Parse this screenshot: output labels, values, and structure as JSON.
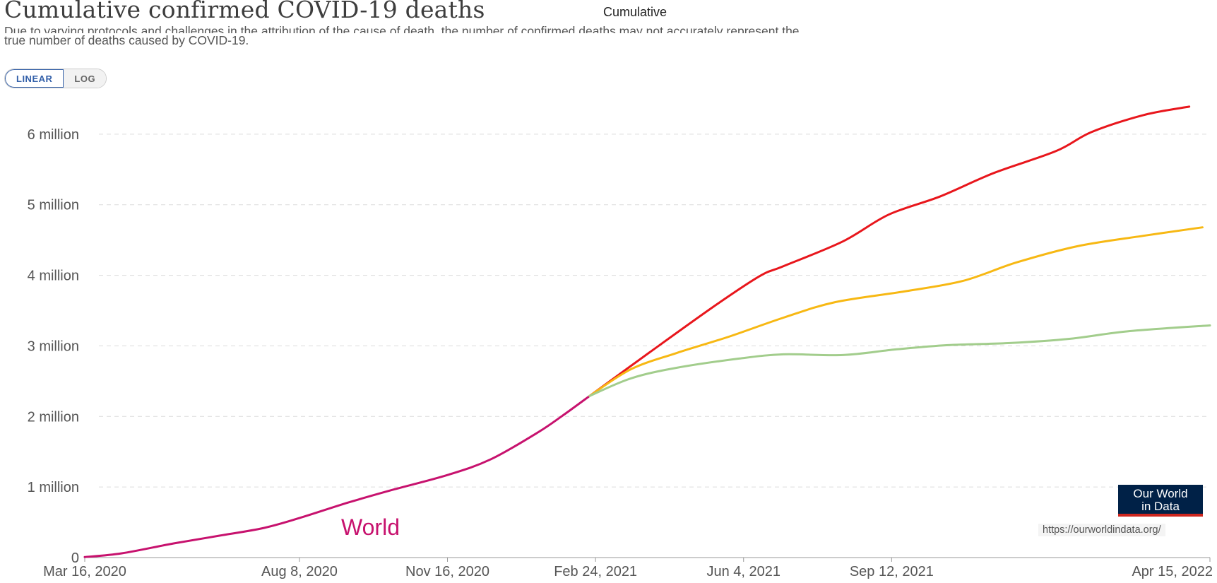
{
  "header": {
    "title": "Cumulative confirmed COVID-19 deaths",
    "tag": "Cumulative",
    "subtitle_line1": "Due to varying protocols and challenges in the attribution of the cause of death, the number of confirmed deaths may not accurately represent the",
    "subtitle_line2": "true number of deaths caused by COVID-19."
  },
  "controls": {
    "linear_label": "LINEAR",
    "log_label": "LOG",
    "active": "LINEAR"
  },
  "branding": {
    "logo_line1": "Our World",
    "logo_line2": "in Data",
    "url": "https://ourworldindata.org/"
  },
  "colors": {
    "world": "#c7126e",
    "red": "#e8161c",
    "yellow": "#f7b813",
    "green": "#a2cd8c",
    "grid": "#dcdcdc"
  },
  "chart_data": {
    "type": "line",
    "y_ticks": [
      {
        "v": 0,
        "label": "0"
      },
      {
        "v": 1000000,
        "label": "1 million"
      },
      {
        "v": 2000000,
        "label": "2 million"
      },
      {
        "v": 3000000,
        "label": "3 million"
      },
      {
        "v": 4000000,
        "label": "4 million"
      },
      {
        "v": 5000000,
        "label": "5 million"
      },
      {
        "v": 6000000,
        "label": "6 million"
      }
    ],
    "x_ticks": [
      {
        "d": "2020-03-16",
        "label": "Mar 16, 2020"
      },
      {
        "d": "2020-08-08",
        "label": "Aug 8, 2020"
      },
      {
        "d": "2020-11-16",
        "label": "Nov 16, 2020"
      },
      {
        "d": "2021-02-24",
        "label": "Feb 24, 2021"
      },
      {
        "d": "2021-06-04",
        "label": "Jun 4, 2021"
      },
      {
        "d": "2021-09-12",
        "label": "Sep 12, 2021"
      },
      {
        "d": "2022-04-15",
        "label": "Apr 15, 2022"
      }
    ],
    "xlim": [
      "2020-03-16",
      "2022-04-15"
    ],
    "ylim": [
      0,
      6800000
    ],
    "grid": true,
    "series_label": "World",
    "series": [
      {
        "color_key": "world",
        "points": [
          [
            "2020-03-16",
            7000
          ],
          [
            "2020-04-10",
            60000
          ],
          [
            "2020-05-15",
            200000
          ],
          [
            "2020-06-15",
            310000
          ],
          [
            "2020-07-15",
            420000
          ],
          [
            "2020-08-08",
            560000
          ],
          [
            "2020-09-10",
            780000
          ],
          [
            "2020-10-10",
            960000
          ],
          [
            "2020-11-16",
            1170000
          ],
          [
            "2020-12-15",
            1390000
          ],
          [
            "2021-01-15",
            1760000
          ],
          [
            "2021-02-01",
            2000000
          ],
          [
            "2021-02-20",
            2290000
          ]
        ]
      },
      {
        "color_key": "red",
        "points": [
          [
            "2021-02-20",
            2290000
          ],
          [
            "2021-04-01",
            2900000
          ],
          [
            "2021-05-15",
            3560000
          ],
          [
            "2021-06-15",
            3990000
          ],
          [
            "2021-07-01",
            4130000
          ],
          [
            "2021-08-10",
            4480000
          ],
          [
            "2021-09-10",
            4860000
          ],
          [
            "2021-10-15",
            5120000
          ],
          [
            "2021-11-20",
            5450000
          ],
          [
            "2022-01-01",
            5760000
          ],
          [
            "2022-01-25",
            6030000
          ],
          [
            "2022-03-01",
            6270000
          ],
          [
            "2022-04-01",
            6390000
          ]
        ]
      },
      {
        "color_key": "yellow",
        "points": [
          [
            "2021-02-20",
            2290000
          ],
          [
            "2021-03-20",
            2670000
          ],
          [
            "2021-04-20",
            2900000
          ],
          [
            "2021-05-25",
            3130000
          ],
          [
            "2021-07-01",
            3400000
          ],
          [
            "2021-08-05",
            3620000
          ],
          [
            "2021-09-20",
            3770000
          ],
          [
            "2021-10-30",
            3920000
          ],
          [
            "2021-12-05",
            4180000
          ],
          [
            "2022-01-15",
            4410000
          ],
          [
            "2022-03-01",
            4560000
          ],
          [
            "2022-04-10",
            4680000
          ]
        ]
      },
      {
        "color_key": "green",
        "points": [
          [
            "2021-02-20",
            2290000
          ],
          [
            "2021-03-20",
            2540000
          ],
          [
            "2021-04-20",
            2690000
          ],
          [
            "2021-06-01",
            2820000
          ],
          [
            "2021-07-01",
            2880000
          ],
          [
            "2021-08-10",
            2870000
          ],
          [
            "2021-09-15",
            2950000
          ],
          [
            "2021-10-20",
            3010000
          ],
          [
            "2021-12-01",
            3040000
          ],
          [
            "2022-01-10",
            3100000
          ],
          [
            "2022-02-20",
            3210000
          ],
          [
            "2022-04-15",
            3290000
          ]
        ]
      }
    ]
  }
}
